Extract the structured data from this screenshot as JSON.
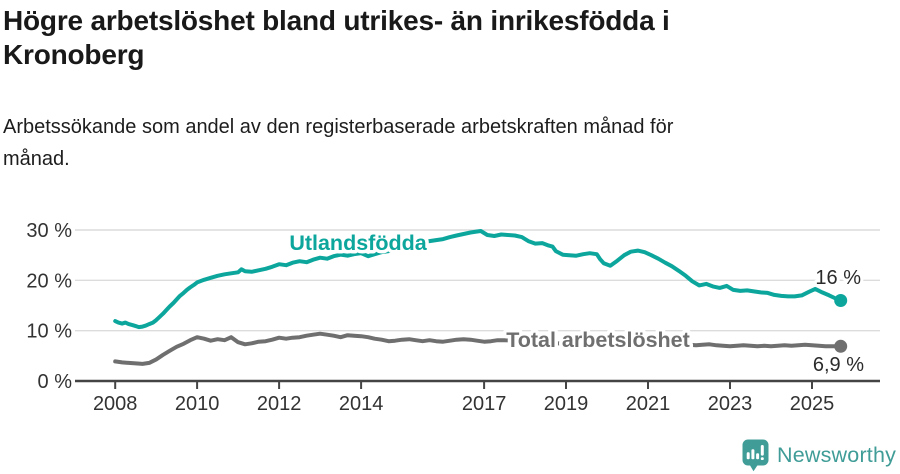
{
  "header": {
    "title_lines": [
      "Högre arbetslöshet bland utrikes- än inrikesfödda i",
      "Kronoberg"
    ],
    "subtitle_lines": [
      "Arbetssökande som andel av den registerbaserade arbetskraften månad för",
      "månad."
    ]
  },
  "footer": {
    "brand": "Newsworthy"
  },
  "colors": {
    "accent_teal": "#0ca69d",
    "series_gray": "#6f6f6f",
    "logo_teal": "#3f9c97",
    "gridline": "#dcdcdc",
    "axis": "#444444",
    "text": "#191919"
  },
  "chart_data": {
    "type": "line",
    "title": "Högre arbetslöshet bland utrikes- än inrikesfödda i Kronoberg",
    "subtitle": "Arbetssökande som andel av den registerbaserade arbetskraften månad för månad.",
    "grid": "horizontal",
    "legend_position": "inline-labels",
    "x_axis": {
      "range": [
        2007.02,
        2026.66
      ],
      "ticks": [
        {
          "value": 2008,
          "label": "2008"
        },
        {
          "value": 2010,
          "label": "2010"
        },
        {
          "value": 2012,
          "label": "2012"
        },
        {
          "value": 2014,
          "label": "2014"
        },
        {
          "value": 2017,
          "label": "2017"
        },
        {
          "value": 2019,
          "label": "2019"
        },
        {
          "value": 2021,
          "label": "2021"
        },
        {
          "value": 2023,
          "label": "2023"
        },
        {
          "value": 2025,
          "label": "2025"
        }
      ]
    },
    "y_axis": {
      "range": [
        0,
        32
      ],
      "unit": "%",
      "ticks": [
        {
          "value": 0,
          "label": "0 %"
        },
        {
          "value": 10,
          "label": "10 %"
        },
        {
          "value": 20,
          "label": "20 %"
        },
        {
          "value": 30,
          "label": "30 %"
        }
      ]
    },
    "series": [
      {
        "id": "utlandsfodda",
        "name": "Utlandsfödda",
        "color": "#0ca69d",
        "end_label": "16 %",
        "end_value": 16.0,
        "points": [
          [
            2008.0,
            11.9
          ],
          [
            2008.08,
            11.6
          ],
          [
            2008.17,
            11.4
          ],
          [
            2008.25,
            11.6
          ],
          [
            2008.33,
            11.3
          ],
          [
            2008.42,
            11.1
          ],
          [
            2008.5,
            10.9
          ],
          [
            2008.58,
            10.7
          ],
          [
            2008.67,
            10.8
          ],
          [
            2008.75,
            11.0
          ],
          [
            2008.83,
            11.3
          ],
          [
            2008.92,
            11.6
          ],
          [
            2009.0,
            12.1
          ],
          [
            2009.08,
            12.7
          ],
          [
            2009.17,
            13.4
          ],
          [
            2009.25,
            14.1
          ],
          [
            2009.33,
            14.8
          ],
          [
            2009.42,
            15.5
          ],
          [
            2009.5,
            16.2
          ],
          [
            2009.58,
            16.9
          ],
          [
            2009.67,
            17.5
          ],
          [
            2009.75,
            18.1
          ],
          [
            2009.83,
            18.6
          ],
          [
            2009.92,
            19.1
          ],
          [
            2010.0,
            19.6
          ],
          [
            2010.17,
            20.1
          ],
          [
            2010.33,
            20.5
          ],
          [
            2010.5,
            20.9
          ],
          [
            2010.67,
            21.2
          ],
          [
            2010.83,
            21.4
          ],
          [
            2011.0,
            21.6
          ],
          [
            2011.08,
            22.2
          ],
          [
            2011.17,
            21.8
          ],
          [
            2011.33,
            21.7
          ],
          [
            2011.5,
            22.0
          ],
          [
            2011.67,
            22.3
          ],
          [
            2011.83,
            22.7
          ],
          [
            2012.0,
            23.2
          ],
          [
            2012.17,
            23.0
          ],
          [
            2012.33,
            23.5
          ],
          [
            2012.5,
            23.8
          ],
          [
            2012.67,
            23.6
          ],
          [
            2012.83,
            24.1
          ],
          [
            2013.0,
            24.5
          ],
          [
            2013.17,
            24.3
          ],
          [
            2013.33,
            24.8
          ],
          [
            2013.5,
            25.1
          ],
          [
            2013.67,
            24.9
          ],
          [
            2013.83,
            25.2
          ],
          [
            2014.0,
            25.4
          ],
          [
            2014.17,
            24.8
          ],
          [
            2014.33,
            25.2
          ],
          [
            2014.5,
            25.6
          ],
          [
            2014.67,
            25.8
          ],
          [
            2014.83,
            26.1
          ],
          [
            2015.0,
            26.7
          ],
          [
            2015.17,
            27.3
          ],
          [
            2015.33,
            27.7
          ],
          [
            2015.5,
            27.5
          ],
          [
            2015.67,
            27.8
          ],
          [
            2015.83,
            28.0
          ],
          [
            2016.0,
            28.2
          ],
          [
            2016.17,
            28.6
          ],
          [
            2016.33,
            28.9
          ],
          [
            2016.5,
            29.2
          ],
          [
            2016.67,
            29.5
          ],
          [
            2016.83,
            29.7
          ],
          [
            2016.92,
            29.8
          ],
          [
            2017.08,
            29.0
          ],
          [
            2017.25,
            28.8
          ],
          [
            2017.42,
            29.1
          ],
          [
            2017.58,
            29.0
          ],
          [
            2017.75,
            28.9
          ],
          [
            2017.92,
            28.6
          ],
          [
            2018.08,
            27.8
          ],
          [
            2018.25,
            27.3
          ],
          [
            2018.42,
            27.4
          ],
          [
            2018.58,
            26.9
          ],
          [
            2018.67,
            26.7
          ],
          [
            2018.75,
            25.8
          ],
          [
            2018.92,
            25.1
          ],
          [
            2019.08,
            25.0
          ],
          [
            2019.25,
            24.9
          ],
          [
            2019.42,
            25.2
          ],
          [
            2019.58,
            25.4
          ],
          [
            2019.75,
            25.2
          ],
          [
            2019.83,
            24.2
          ],
          [
            2019.92,
            23.4
          ],
          [
            2020.08,
            22.9
          ],
          [
            2020.25,
            23.9
          ],
          [
            2020.42,
            25.0
          ],
          [
            2020.58,
            25.7
          ],
          [
            2020.75,
            25.9
          ],
          [
            2020.92,
            25.6
          ],
          [
            2021.08,
            25.0
          ],
          [
            2021.25,
            24.3
          ],
          [
            2021.42,
            23.5
          ],
          [
            2021.58,
            22.8
          ],
          [
            2021.75,
            21.9
          ],
          [
            2021.92,
            20.9
          ],
          [
            2022.08,
            19.8
          ],
          [
            2022.25,
            19.0
          ],
          [
            2022.42,
            19.3
          ],
          [
            2022.58,
            18.8
          ],
          [
            2022.75,
            18.5
          ],
          [
            2022.92,
            18.9
          ],
          [
            2023.08,
            18.1
          ],
          [
            2023.25,
            17.9
          ],
          [
            2023.42,
            18.0
          ],
          [
            2023.58,
            17.8
          ],
          [
            2023.75,
            17.6
          ],
          [
            2023.92,
            17.5
          ],
          [
            2024.08,
            17.1
          ],
          [
            2024.25,
            16.9
          ],
          [
            2024.42,
            16.8
          ],
          [
            2024.58,
            16.8
          ],
          [
            2024.75,
            17.0
          ],
          [
            2024.92,
            17.7
          ],
          [
            2025.08,
            18.3
          ],
          [
            2025.25,
            17.6
          ],
          [
            2025.42,
            17.0
          ],
          [
            2025.58,
            16.4
          ],
          [
            2025.7,
            16.0
          ]
        ]
      },
      {
        "id": "total",
        "name": "Total arbetslöshet",
        "color": "#6f6f6f",
        "end_label": "6,9 %",
        "end_value": 6.9,
        "points": [
          [
            2008.0,
            3.9
          ],
          [
            2008.17,
            3.7
          ],
          [
            2008.33,
            3.6
          ],
          [
            2008.5,
            3.5
          ],
          [
            2008.67,
            3.4
          ],
          [
            2008.83,
            3.6
          ],
          [
            2009.0,
            4.3
          ],
          [
            2009.17,
            5.2
          ],
          [
            2009.33,
            6.0
          ],
          [
            2009.5,
            6.8
          ],
          [
            2009.67,
            7.4
          ],
          [
            2009.83,
            8.1
          ],
          [
            2010.0,
            8.7
          ],
          [
            2010.17,
            8.4
          ],
          [
            2010.33,
            8.0
          ],
          [
            2010.5,
            8.3
          ],
          [
            2010.67,
            8.1
          ],
          [
            2010.83,
            8.7
          ],
          [
            2011.0,
            7.7
          ],
          [
            2011.17,
            7.3
          ],
          [
            2011.33,
            7.5
          ],
          [
            2011.5,
            7.8
          ],
          [
            2011.67,
            7.9
          ],
          [
            2011.83,
            8.2
          ],
          [
            2012.0,
            8.6
          ],
          [
            2012.17,
            8.4
          ],
          [
            2012.33,
            8.6
          ],
          [
            2012.5,
            8.7
          ],
          [
            2012.67,
            9.0
          ],
          [
            2012.83,
            9.2
          ],
          [
            2013.0,
            9.4
          ],
          [
            2013.17,
            9.2
          ],
          [
            2013.33,
            9.0
          ],
          [
            2013.5,
            8.7
          ],
          [
            2013.67,
            9.1
          ],
          [
            2013.83,
            9.0
          ],
          [
            2014.0,
            8.9
          ],
          [
            2014.17,
            8.7
          ],
          [
            2014.33,
            8.4
          ],
          [
            2014.5,
            8.2
          ],
          [
            2014.67,
            7.9
          ],
          [
            2014.83,
            8.0
          ],
          [
            2015.0,
            8.2
          ],
          [
            2015.17,
            8.3
          ],
          [
            2015.33,
            8.1
          ],
          [
            2015.5,
            7.9
          ],
          [
            2015.67,
            8.1
          ],
          [
            2015.83,
            7.9
          ],
          [
            2016.0,
            7.8
          ],
          [
            2016.17,
            8.0
          ],
          [
            2016.33,
            8.2
          ],
          [
            2016.5,
            8.3
          ],
          [
            2016.67,
            8.2
          ],
          [
            2016.83,
            8.0
          ],
          [
            2017.0,
            7.8
          ],
          [
            2017.17,
            7.9
          ],
          [
            2017.33,
            8.1
          ],
          [
            2017.5,
            8.1
          ],
          [
            2017.75,
            8.0
          ],
          [
            2018.0,
            7.9
          ],
          [
            2018.25,
            7.8
          ],
          [
            2018.5,
            7.6
          ],
          [
            2018.75,
            7.5
          ],
          [
            2019.0,
            7.4
          ],
          [
            2019.25,
            7.3
          ],
          [
            2019.5,
            7.2
          ],
          [
            2019.75,
            7.4
          ],
          [
            2020.0,
            7.6
          ],
          [
            2020.25,
            8.0
          ],
          [
            2020.5,
            8.2
          ],
          [
            2020.75,
            8.1
          ],
          [
            2021.0,
            7.9
          ],
          [
            2021.25,
            7.6
          ],
          [
            2021.5,
            7.4
          ],
          [
            2021.75,
            7.3
          ],
          [
            2022.0,
            7.2
          ],
          [
            2022.17,
            7.1
          ],
          [
            2022.33,
            7.2
          ],
          [
            2022.5,
            7.3
          ],
          [
            2022.67,
            7.1
          ],
          [
            2022.83,
            7.0
          ],
          [
            2023.0,
            6.9
          ],
          [
            2023.17,
            7.0
          ],
          [
            2023.33,
            7.1
          ],
          [
            2023.5,
            7.0
          ],
          [
            2023.67,
            6.9
          ],
          [
            2023.83,
            7.0
          ],
          [
            2024.0,
            6.9
          ],
          [
            2024.17,
            7.0
          ],
          [
            2024.33,
            7.1
          ],
          [
            2024.5,
            7.0
          ],
          [
            2024.67,
            7.1
          ],
          [
            2024.83,
            7.2
          ],
          [
            2025.0,
            7.1
          ],
          [
            2025.17,
            7.0
          ],
          [
            2025.33,
            6.9
          ],
          [
            2025.5,
            6.9
          ],
          [
            2025.7,
            6.9
          ]
        ]
      }
    ]
  }
}
